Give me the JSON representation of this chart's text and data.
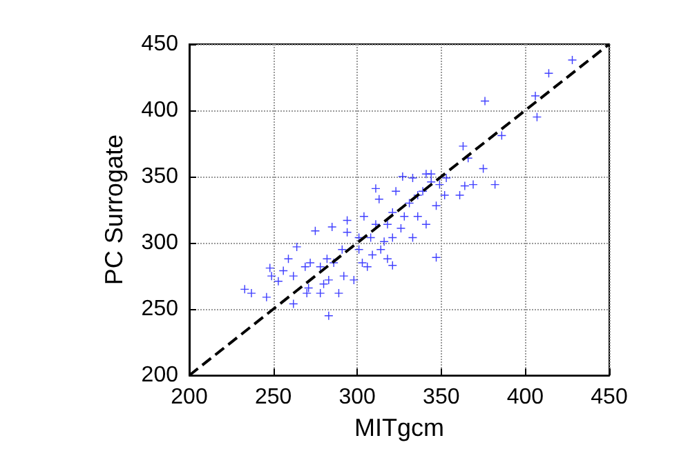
{
  "chart_data": {
    "type": "scatter",
    "xlabel": "MITgcm",
    "ylabel": "PC Surrogate",
    "xlim": [
      200,
      450
    ],
    "ylim": [
      200,
      450
    ],
    "xticks": [
      200,
      250,
      300,
      350,
      400,
      450
    ],
    "yticks": [
      200,
      250,
      300,
      350,
      400,
      450
    ],
    "grid": true,
    "marker": "cross",
    "series": [
      {
        "color": "#0000ff",
        "x": [
          428,
          414,
          406,
          376,
          407,
          386,
          363,
          366,
          375,
          364,
          369,
          382,
          361,
          347,
          283,
          321,
          233,
          237,
          246,
          262,
          248,
          264,
          275,
          285,
          294,
          311,
          327,
          341,
          344,
          353,
          347,
          341,
          333,
          318,
          309,
          298,
          278,
          262,
          256,
          269,
          282,
          291,
          301,
          311,
          321,
          331,
          339,
          349,
          336,
          326,
          316,
          303,
          292,
          280,
          271,
          259,
          253,
          294,
          304,
          313,
          323,
          333,
          344,
          352,
          336,
          328,
          318,
          308,
          301,
          286,
          278,
          272,
          306,
          314,
          321,
          283,
          270,
          249,
          289
        ],
        "values": [
          438,
          428,
          411,
          407,
          395,
          381,
          373,
          364,
          356,
          343,
          344,
          344,
          336,
          289,
          245,
          283,
          265,
          262,
          259,
          254,
          281,
          297,
          309,
          312,
          317,
          341,
          350,
          352,
          352,
          349,
          328,
          314,
          304,
          288,
          291,
          272,
          262,
          275,
          279,
          282,
          288,
          295,
          304,
          314,
          323,
          330,
          339,
          344,
          320,
          311,
          301,
          285,
          275,
          269,
          266,
          288,
          271,
          308,
          320,
          333,
          339,
          349,
          346,
          336,
          336,
          320,
          314,
          304,
          295,
          285,
          282,
          285,
          282,
          295,
          304,
          272,
          262,
          275,
          262
        ]
      },
      {
        "type": "line",
        "color": "#000000",
        "x": [
          200,
          450
        ],
        "values": [
          200,
          450
        ],
        "line_style": "dashed",
        "marker": "none"
      }
    ]
  }
}
